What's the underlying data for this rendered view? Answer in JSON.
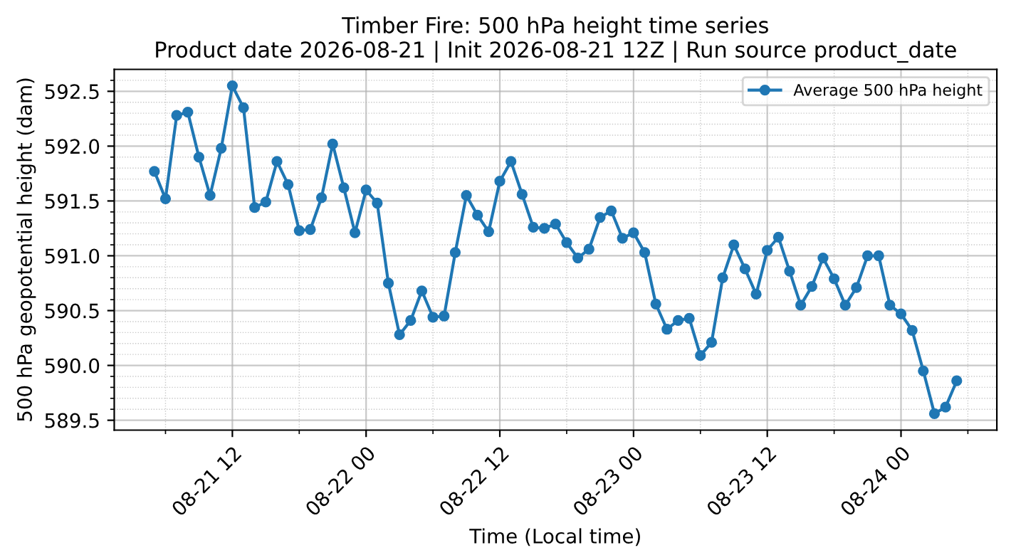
{
  "chart_data": {
    "type": "line",
    "title": "Timber Fire: 500 hPa height time series\nProduct date 2026-08-21 | Init 2026-08-21 12Z | Run source product_date",
    "xlabel": "Time (Local time)",
    "ylabel": "500 hPa geopotential height (dam)",
    "x": [
      "2026-08-21T05:00",
      "2026-08-21T06:00",
      "2026-08-21T07:00",
      "2026-08-21T08:00",
      "2026-08-21T09:00",
      "2026-08-21T10:00",
      "2026-08-21T11:00",
      "2026-08-21T12:00",
      "2026-08-21T13:00",
      "2026-08-21T14:00",
      "2026-08-21T15:00",
      "2026-08-21T16:00",
      "2026-08-21T17:00",
      "2026-08-21T18:00",
      "2026-08-21T19:00",
      "2026-08-21T20:00",
      "2026-08-21T21:00",
      "2026-08-21T22:00",
      "2026-08-21T23:00",
      "2026-08-22T00:00",
      "2026-08-22T01:00",
      "2026-08-22T02:00",
      "2026-08-22T03:00",
      "2026-08-22T04:00",
      "2026-08-22T05:00",
      "2026-08-22T06:00",
      "2026-08-22T07:00",
      "2026-08-22T08:00",
      "2026-08-22T09:00",
      "2026-08-22T10:00",
      "2026-08-22T11:00",
      "2026-08-22T12:00",
      "2026-08-22T13:00",
      "2026-08-22T14:00",
      "2026-08-22T15:00",
      "2026-08-22T16:00",
      "2026-08-22T17:00",
      "2026-08-22T18:00",
      "2026-08-22T19:00",
      "2026-08-22T20:00",
      "2026-08-22T21:00",
      "2026-08-22T22:00",
      "2026-08-22T23:00",
      "2026-08-23T00:00",
      "2026-08-23T01:00",
      "2026-08-23T02:00",
      "2026-08-23T03:00",
      "2026-08-23T04:00",
      "2026-08-23T05:00",
      "2026-08-23T06:00",
      "2026-08-23T07:00",
      "2026-08-23T08:00",
      "2026-08-23T09:00",
      "2026-08-23T10:00",
      "2026-08-23T11:00",
      "2026-08-23T12:00",
      "2026-08-23T13:00",
      "2026-08-23T14:00",
      "2026-08-23T15:00",
      "2026-08-23T16:00",
      "2026-08-23T17:00",
      "2026-08-23T18:00",
      "2026-08-23T19:00",
      "2026-08-23T20:00",
      "2026-08-23T21:00",
      "2026-08-23T22:00",
      "2026-08-23T23:00",
      "2026-08-24T00:00",
      "2026-08-24T01:00",
      "2026-08-24T02:00",
      "2026-08-24T03:00",
      "2026-08-24T04:00",
      "2026-08-24T05:00"
    ],
    "series": [
      {
        "name": "Average 500 hPa height",
        "color": "#1f77b4",
        "values": [
          591.77,
          591.52,
          592.28,
          592.31,
          591.9,
          591.55,
          591.98,
          592.55,
          592.35,
          591.44,
          591.49,
          591.86,
          591.65,
          591.23,
          591.24,
          591.53,
          592.02,
          591.62,
          591.21,
          591.6,
          591.48,
          590.75,
          590.28,
          590.41,
          590.68,
          590.44,
          590.45,
          591.03,
          591.55,
          591.37,
          591.22,
          591.68,
          591.86,
          591.56,
          591.26,
          591.25,
          591.29,
          591.12,
          590.98,
          591.06,
          591.35,
          591.41,
          591.16,
          591.21,
          591.03,
          590.56,
          590.33,
          590.41,
          590.43,
          590.09,
          590.21,
          590.8,
          591.1,
          590.88,
          590.65,
          591.05,
          591.17,
          590.86,
          590.55,
          590.72,
          590.98,
          590.79,
          590.55,
          590.71,
          591.0,
          591.0,
          590.55,
          590.47,
          590.32,
          589.95,
          589.56,
          589.62,
          589.86
        ]
      }
    ],
    "xlim": [
      "2026-08-21T01:24",
      "2026-08-24T08:36"
    ],
    "xticks": [
      {
        "value": "2026-08-21T06:00",
        "label": null
      },
      {
        "value": "2026-08-21T12:00",
        "label": "08-21 12"
      },
      {
        "value": "2026-08-21T18:00",
        "label": null
      },
      {
        "value": "2026-08-22T00:00",
        "label": "08-22 00"
      },
      {
        "value": "2026-08-22T06:00",
        "label": null
      },
      {
        "value": "2026-08-22T12:00",
        "label": "08-22 12"
      },
      {
        "value": "2026-08-22T18:00",
        "label": null
      },
      {
        "value": "2026-08-23T00:00",
        "label": "08-23 00"
      },
      {
        "value": "2026-08-23T06:00",
        "label": null
      },
      {
        "value": "2026-08-23T12:00",
        "label": "08-23 12"
      },
      {
        "value": "2026-08-23T18:00",
        "label": null
      },
      {
        "value": "2026-08-24T00:00",
        "label": "08-24 00"
      },
      {
        "value": "2026-08-24T06:00",
        "label": null
      }
    ],
    "ylim": [
      589.41,
      592.7
    ],
    "yticks": [
      {
        "value": 589.5,
        "label": "589.5"
      },
      {
        "value": 589.6,
        "label": null
      },
      {
        "value": 589.7,
        "label": null
      },
      {
        "value": 589.8,
        "label": null
      },
      {
        "value": 589.9,
        "label": null
      },
      {
        "value": 590.0,
        "label": "590.0"
      },
      {
        "value": 590.1,
        "label": null
      },
      {
        "value": 590.2,
        "label": null
      },
      {
        "value": 590.3,
        "label": null
      },
      {
        "value": 590.4,
        "label": null
      },
      {
        "value": 590.5,
        "label": "590.5"
      },
      {
        "value": 590.6,
        "label": null
      },
      {
        "value": 590.7,
        "label": null
      },
      {
        "value": 590.8,
        "label": null
      },
      {
        "value": 590.9,
        "label": null
      },
      {
        "value": 591.0,
        "label": "591.0"
      },
      {
        "value": 591.1,
        "label": null
      },
      {
        "value": 591.2,
        "label": null
      },
      {
        "value": 591.3,
        "label": null
      },
      {
        "value": 591.4,
        "label": null
      },
      {
        "value": 591.5,
        "label": "591.5"
      },
      {
        "value": 591.6,
        "label": null
      },
      {
        "value": 591.7,
        "label": null
      },
      {
        "value": 591.8,
        "label": null
      },
      {
        "value": 591.9,
        "label": null
      },
      {
        "value": 592.0,
        "label": "592.0"
      },
      {
        "value": 592.1,
        "label": null
      },
      {
        "value": 592.2,
        "label": null
      },
      {
        "value": 592.3,
        "label": null
      },
      {
        "value": 592.4,
        "label": null
      },
      {
        "value": 592.5,
        "label": "592.5"
      },
      {
        "value": 592.6,
        "label": null
      }
    ],
    "grid": true,
    "legend": "top right",
    "marker": "circle",
    "line_style": "solid"
  }
}
